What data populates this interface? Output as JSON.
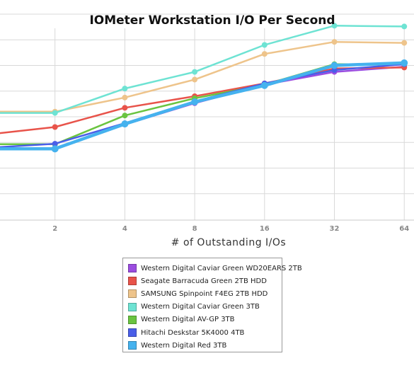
{
  "chart_data": {
    "type": "line",
    "title": "IOMeter Workstation I/O Per Second",
    "xlabel": "# of Outstanding I/Os",
    "ylabel": "",
    "x": [
      1,
      2,
      4,
      8,
      16,
      32,
      64
    ],
    "x_tick_labels": [
      "2",
      "4",
      "8",
      "16",
      "32",
      "64"
    ],
    "ylim": [
      0,
      8
    ],
    "grid": true,
    "legend_position": "bottom",
    "series": [
      {
        "name": "Western Digital Caviar Green WD20EARS 2TB",
        "color": "#9b4de0",
        "values": [
          2.78,
          2.78,
          3.7,
          4.53,
          5.25,
          5.75,
          5.95
        ]
      },
      {
        "name": "Seagate Barracuda Green 2TB HDD",
        "color": "#e8534a",
        "values": [
          3.3,
          3.6,
          4.35,
          4.8,
          5.3,
          5.88,
          5.92
        ]
      },
      {
        "name": "SAMSUNG Spinpoint F4EG 2TB HDD",
        "color": "#eec48b",
        "values": [
          4.2,
          4.2,
          4.75,
          5.45,
          6.45,
          6.92,
          6.88
        ]
      },
      {
        "name": "Western Digital Caviar Green 3TB",
        "color": "#6ee3d3",
        "values": [
          4.15,
          4.15,
          5.1,
          5.75,
          6.8,
          7.55,
          7.52
        ]
      },
      {
        "name": "Western Digital AV-GP 3TB",
        "color": "#6ac440",
        "values": [
          2.93,
          2.93,
          4.05,
          4.72,
          5.25,
          6.05,
          6.05
        ]
      },
      {
        "name": "Hitachi Deskstar 5K4000 4TB",
        "color": "#4a5ee8",
        "values": [
          2.78,
          2.95,
          3.75,
          4.6,
          5.3,
          5.82,
          6.05
        ]
      },
      {
        "name": "Western Digital Red 3TB",
        "color": "#45b2ee",
        "values": [
          2.75,
          2.75,
          3.72,
          4.58,
          5.22,
          6.0,
          6.1
        ]
      }
    ]
  }
}
